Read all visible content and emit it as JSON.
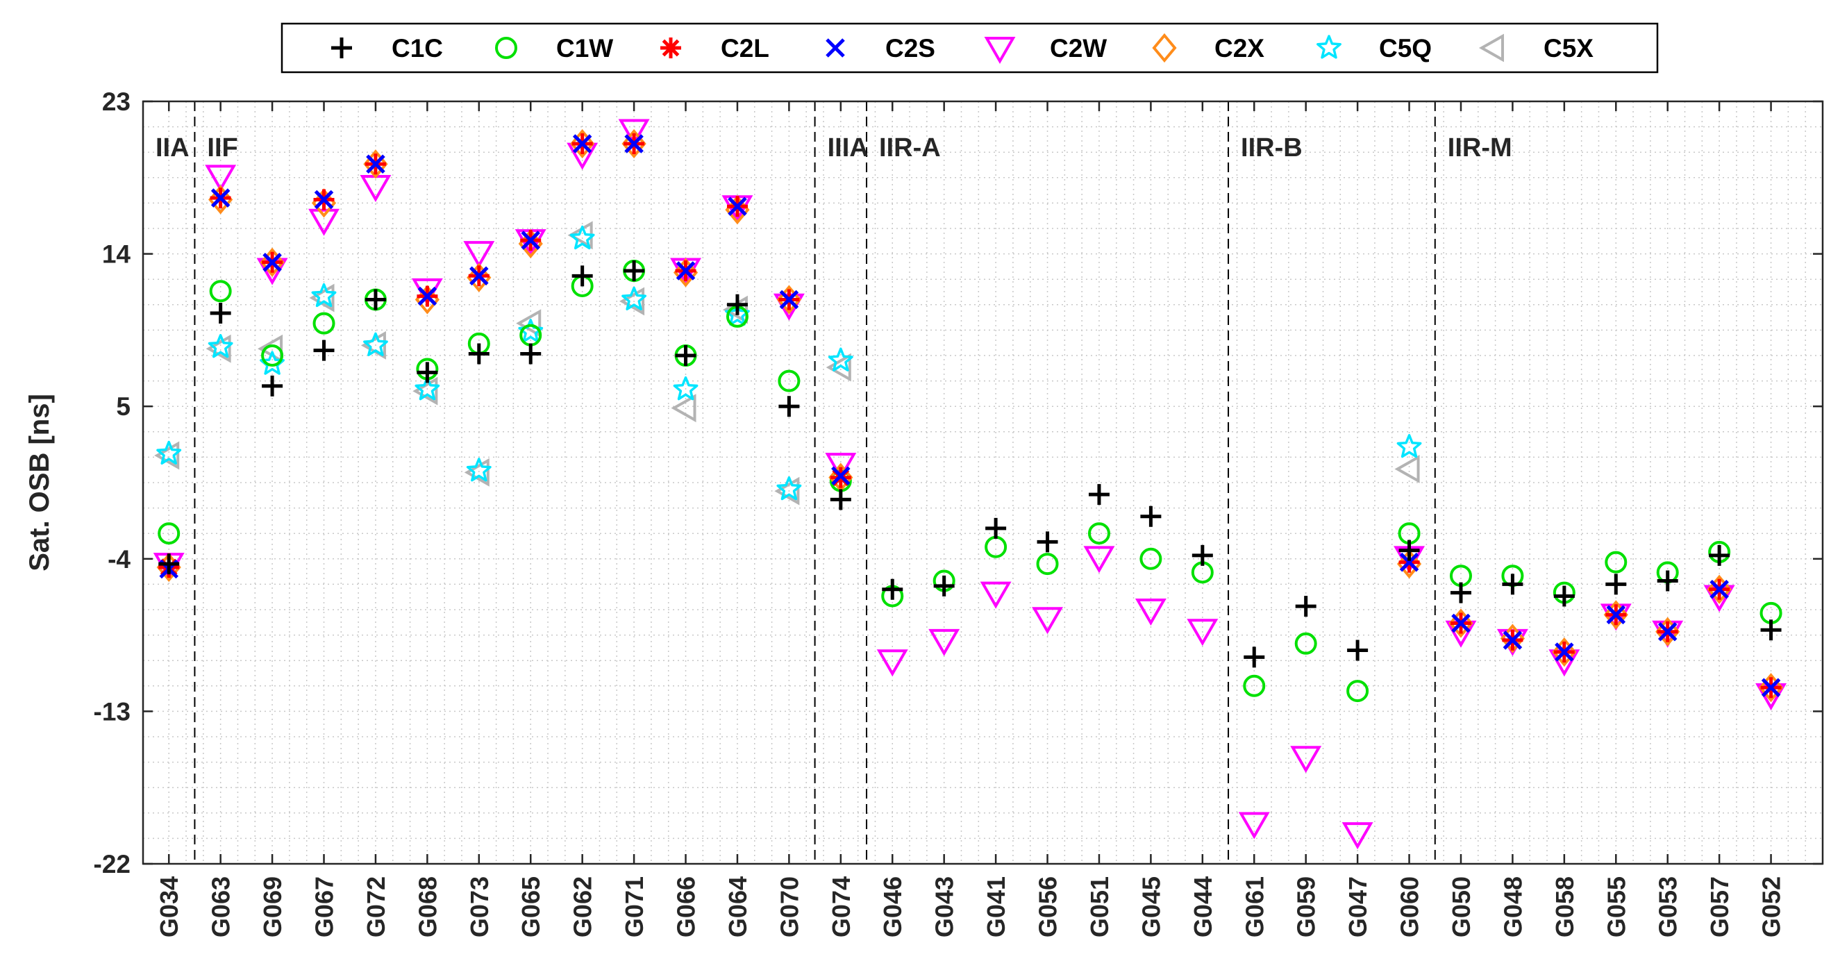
{
  "chart_data": {
    "type": "scatter",
    "title": "",
    "xlabel": "",
    "ylabel": "Sat. OSB [ns]",
    "ylim": [
      -22,
      23
    ],
    "yticks": [
      "23",
      "14",
      "5",
      "-4",
      "-13",
      "-22"
    ],
    "ytick_values": [
      23,
      14,
      5,
      -4,
      -13,
      -22
    ],
    "grid": "dotted-minor",
    "legend_position": "top-outside",
    "categories": [
      "G034",
      "G063",
      "G069",
      "G067",
      "G072",
      "G068",
      "G073",
      "G065",
      "G062",
      "G071",
      "G066",
      "G064",
      "G070",
      "G074",
      "G046",
      "G043",
      "G041",
      "G056",
      "G051",
      "G045",
      "G044",
      "G061",
      "G059",
      "G047",
      "G060",
      "G050",
      "G048",
      "G058",
      "G055",
      "G053",
      "G057",
      "G052"
    ],
    "groups": [
      {
        "label": "IIA",
        "start": 0,
        "end": 0
      },
      {
        "label": "IIF",
        "start": 1,
        "end": 12
      },
      {
        "label": "IIIA",
        "start": 13,
        "end": 13
      },
      {
        "label": "IIR-A",
        "start": 14,
        "end": 20
      },
      {
        "label": "IIR-B",
        "start": 21,
        "end": 24
      },
      {
        "label": "IIR-M",
        "start": 25,
        "end": 31
      }
    ],
    "series": [
      {
        "name": "C1C",
        "marker": "plus",
        "color": "#000000",
        "values": [
          -4.3,
          10.5,
          6.2,
          8.3,
          11.3,
          7.0,
          8.1,
          8.1,
          12.7,
          13.0,
          8.0,
          11.0,
          5.0,
          -0.5,
          -5.8,
          -5.6,
          -2.2,
          -3.0,
          -0.2,
          -1.5,
          -3.8,
          -9.8,
          -6.8,
          -9.4,
          -3.5,
          -6.0,
          -5.5,
          -6.2,
          -5.5,
          -5.3,
          -3.8,
          -8.2
        ]
      },
      {
        "name": "C1W",
        "marker": "circle",
        "color": "#00e000",
        "values": [
          -2.5,
          11.8,
          8.0,
          9.9,
          11.3,
          7.2,
          8.7,
          9.2,
          12.1,
          13.0,
          8.0,
          10.3,
          6.5,
          0.6,
          -6.2,
          -5.3,
          -3.3,
          -4.3,
          -2.5,
          -4.0,
          -4.8,
          -11.5,
          -9.0,
          -11.8,
          -2.5,
          -5.0,
          -5.0,
          -6.0,
          -4.2,
          -4.8,
          -3.6,
          -7.2
        ]
      },
      {
        "name": "C2L",
        "marker": "asterisk",
        "color": "#ff0000",
        "values": [
          -4.5,
          17.3,
          13.5,
          17.2,
          19.3,
          11.5,
          12.7,
          14.8,
          20.5,
          20.5,
          13.0,
          16.8,
          11.3,
          0.8,
          null,
          null,
          null,
          null,
          null,
          null,
          null,
          null,
          null,
          null,
          -4.2,
          -7.8,
          -8.8,
          -9.5,
          -7.3,
          -8.3,
          -5.8,
          -11.6
        ]
      },
      {
        "name": "C2S",
        "marker": "x",
        "color": "#0000ff",
        "values": [
          -4.6,
          17.3,
          13.5,
          17.2,
          19.3,
          11.5,
          12.7,
          14.8,
          20.5,
          20.5,
          13.0,
          16.8,
          11.3,
          0.9,
          null,
          null,
          null,
          null,
          null,
          null,
          null,
          null,
          null,
          null,
          -4.2,
          -7.8,
          -8.8,
          -9.5,
          -7.3,
          -8.3,
          -5.8,
          -11.6
        ]
      },
      {
        "name": "C2W",
        "marker": "triangle-down",
        "color": "#ff00ff",
        "values": [
          -4.3,
          18.6,
          13.1,
          16.0,
          18.0,
          11.9,
          14.1,
          14.8,
          19.9,
          21.3,
          13.1,
          16.8,
          11.0,
          1.6,
          -10.0,
          -8.8,
          -6.0,
          -7.5,
          -3.9,
          -7.0,
          -8.2,
          -19.6,
          -15.7,
          -20.2,
          -3.9,
          -8.3,
          -8.8,
          -10.0,
          -7.3,
          -8.3,
          -6.2,
          -12.0
        ]
      },
      {
        "name": "C2X",
        "marker": "diamond",
        "color": "#ff8c1a",
        "values": [
          -4.5,
          17.2,
          13.5,
          17.0,
          19.3,
          11.3,
          12.6,
          14.6,
          20.5,
          20.5,
          12.9,
          16.6,
          11.3,
          0.8,
          null,
          null,
          null,
          null,
          null,
          null,
          null,
          null,
          null,
          null,
          -4.3,
          -7.8,
          -8.7,
          -9.5,
          -7.3,
          -8.3,
          -5.8,
          -11.6
        ]
      },
      {
        "name": "C5Q",
        "marker": "pentagram",
        "color": "#00e5ff",
        "values": [
          2.2,
          8.5,
          7.5,
          11.5,
          8.6,
          6.0,
          1.2,
          9.4,
          14.9,
          11.3,
          6.0,
          10.4,
          0.1,
          7.7,
          null,
          null,
          null,
          null,
          null,
          null,
          null,
          null,
          null,
          null,
          2.6,
          null,
          null,
          null,
          null,
          null,
          null,
          null
        ]
      },
      {
        "name": "C5X",
        "marker": "triangle-left",
        "color": "#b3b3b3",
        "values": [
          2.1,
          8.4,
          8.4,
          11.4,
          8.6,
          5.9,
          1.1,
          9.9,
          15.1,
          11.2,
          4.9,
          10.7,
          0.0,
          7.3,
          null,
          null,
          null,
          null,
          null,
          null,
          null,
          null,
          null,
          null,
          1.3,
          null,
          null,
          null,
          null,
          null,
          null,
          null
        ]
      }
    ]
  }
}
